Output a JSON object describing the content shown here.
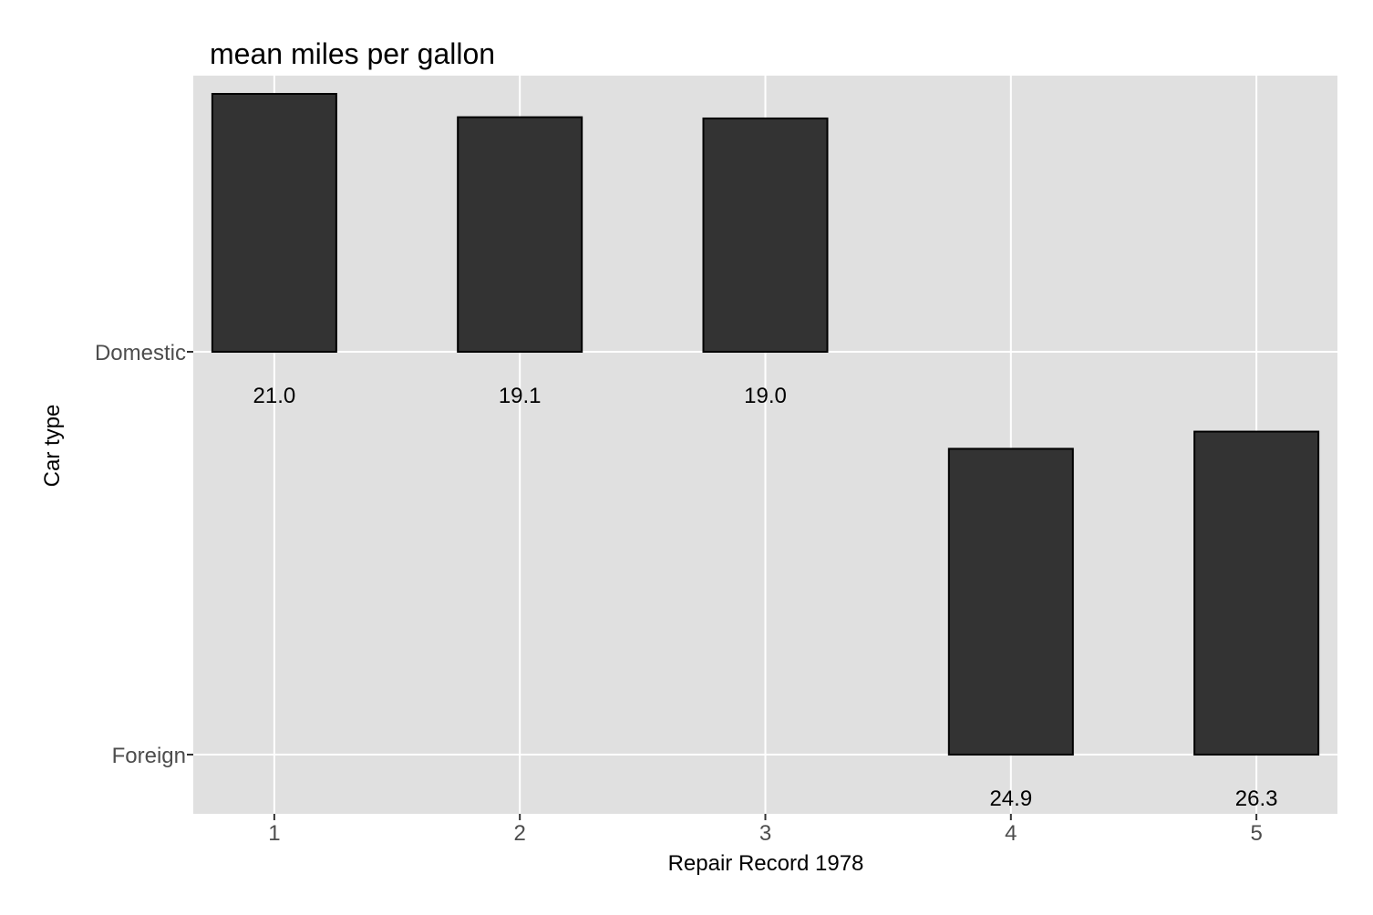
{
  "chart_data": {
    "type": "bar",
    "title": "mean miles per gallon",
    "xlabel": "Repair Record 1978",
    "ylabel": "Car type",
    "x_ticks": [
      "1",
      "2",
      "3",
      "4",
      "5"
    ],
    "y_categories": [
      "Domestic",
      "Foreign"
    ],
    "series": [
      {
        "name": "Domestic",
        "points": [
          {
            "x": 1,
            "value": 21.0,
            "label": "21.0"
          },
          {
            "x": 2,
            "value": 19.1,
            "label": "19.1"
          },
          {
            "x": 3,
            "value": 19.0,
            "label": "19.0"
          }
        ]
      },
      {
        "name": "Foreign",
        "points": [
          {
            "x": 4,
            "value": 24.9,
            "label": "24.9"
          },
          {
            "x": 5,
            "value": 26.3,
            "label": "26.3"
          }
        ]
      }
    ],
    "xlim": [
      0.67,
      5.33
    ],
    "grid": true,
    "legend": "none",
    "colors": {
      "panel_background": "#e0e0e0",
      "grid": "#ffffff",
      "bar_fill": "#333333",
      "bar_outline": "#000000",
      "tick_text": "#4d4d4d"
    }
  }
}
